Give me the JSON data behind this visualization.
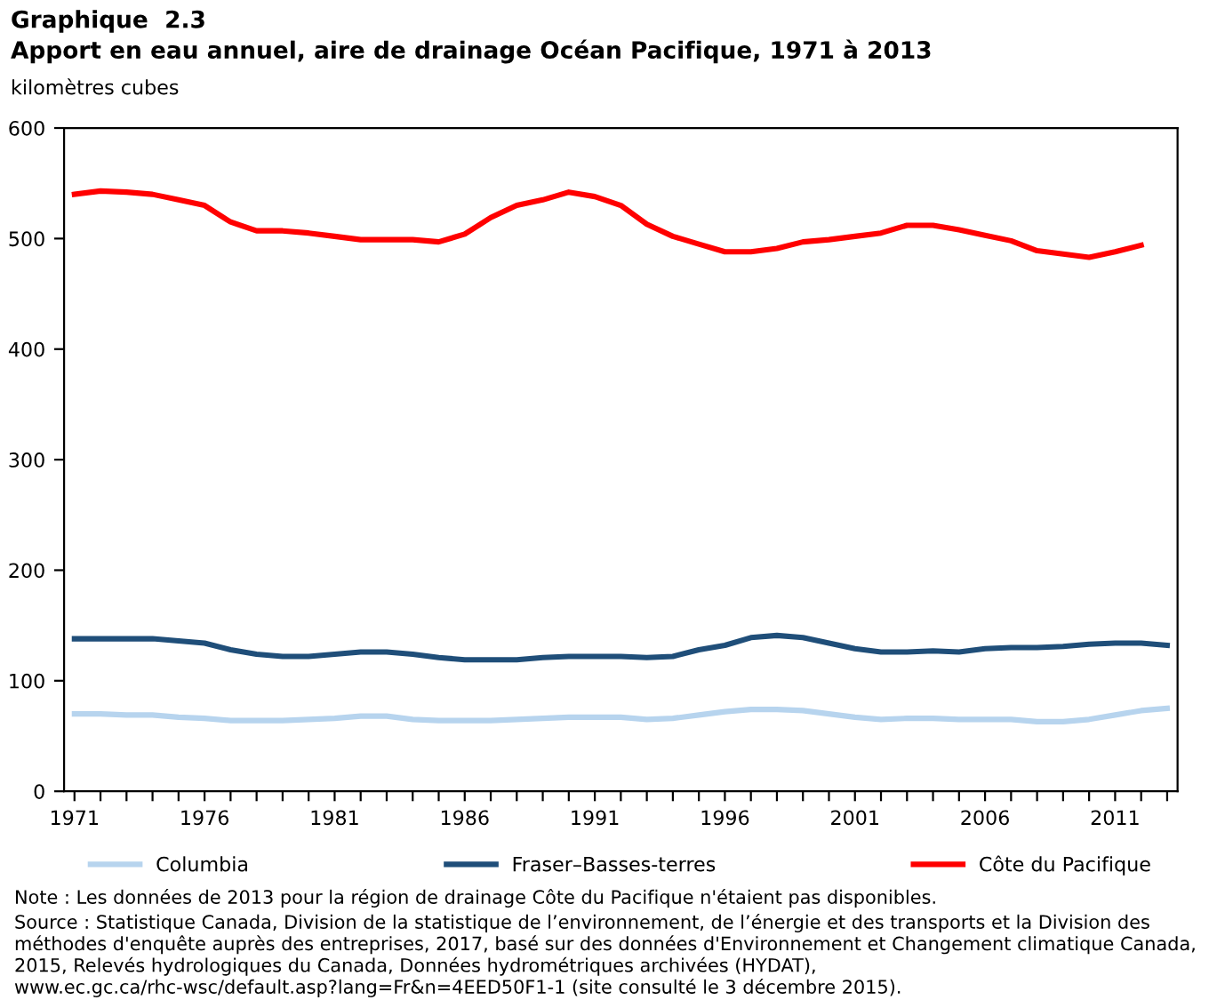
{
  "chart_data": {
    "type": "line",
    "title": "Graphique  2.3",
    "subtitle": "Apport en eau annuel, aire de drainage Océan Pacifique, 1971 à 2013",
    "ylabel": "kilomètres cubes",
    "x": [
      1971,
      1972,
      1973,
      1974,
      1975,
      1976,
      1977,
      1978,
      1979,
      1980,
      1981,
      1982,
      1983,
      1984,
      1985,
      1986,
      1987,
      1988,
      1989,
      1990,
      1991,
      1992,
      1993,
      1994,
      1995,
      1996,
      1997,
      1998,
      1999,
      2000,
      2001,
      2002,
      2003,
      2004,
      2005,
      2006,
      2007,
      2008,
      2009,
      2010,
      2011,
      2012,
      2013
    ],
    "series": [
      {
        "name": "Columbia",
        "color": "#b7d4ee",
        "values": [
          70,
          70,
          69,
          69,
          67,
          66,
          64,
          64,
          64,
          65,
          66,
          68,
          68,
          65,
          64,
          64,
          64,
          65,
          66,
          67,
          67,
          67,
          65,
          66,
          69,
          72,
          74,
          74,
          73,
          70,
          67,
          65,
          66,
          66,
          65,
          65,
          65,
          63,
          63,
          65,
          69,
          73,
          75
        ]
      },
      {
        "name": "Fraser–Basses-terres",
        "color": "#1f4e79",
        "values": [
          138,
          138,
          138,
          138,
          136,
          134,
          128,
          124,
          122,
          122,
          124,
          126,
          126,
          124,
          121,
          119,
          119,
          119,
          121,
          122,
          122,
          122,
          121,
          122,
          128,
          132,
          139,
          141,
          139,
          134,
          129,
          126,
          126,
          127,
          126,
          129,
          130,
          130,
          131,
          133,
          134,
          134,
          132
        ]
      },
      {
        "name": "Côte du Pacifique",
        "color": "#ff0000",
        "values": [
          540,
          543,
          542,
          540,
          535,
          530,
          515,
          507,
          507,
          505,
          502,
          499,
          499,
          499,
          497,
          504,
          519,
          530,
          535,
          542,
          538,
          530,
          513,
          502,
          495,
          488,
          488,
          491,
          497,
          499,
          502,
          505,
          512,
          512,
          508,
          503,
          498,
          489,
          486,
          483,
          488,
          494,
          null
        ]
      }
    ],
    "xlim": [
      1970.6,
      2013.4
    ],
    "xticks": [
      1971,
      {
        "value": 1972,
        "label": null
      },
      {
        "value": 1973,
        "label": null
      },
      {
        "value": 1974,
        "label": null
      },
      {
        "value": 1975,
        "label": null
      },
      1976,
      {
        "value": 1977,
        "label": null
      },
      {
        "value": 1978,
        "label": null
      },
      {
        "value": 1979,
        "label": null
      },
      {
        "value": 1980,
        "label": null
      },
      1981,
      {
        "value": 1982,
        "label": null
      },
      {
        "value": 1983,
        "label": null
      },
      {
        "value": 1984,
        "label": null
      },
      {
        "value": 1985,
        "label": null
      },
      1986,
      {
        "value": 1987,
        "label": null
      },
      {
        "value": 1988,
        "label": null
      },
      {
        "value": 1989,
        "label": null
      },
      {
        "value": 1990,
        "label": null
      },
      1991,
      {
        "value": 1992,
        "label": null
      },
      {
        "value": 1993,
        "label": null
      },
      {
        "value": 1994,
        "label": null
      },
      {
        "value": 1995,
        "label": null
      },
      1996,
      {
        "value": 1997,
        "label": null
      },
      {
        "value": 1998,
        "label": null
      },
      {
        "value": 1999,
        "label": null
      },
      {
        "value": 2000,
        "label": null
      },
      2001,
      {
        "value": 2002,
        "label": null
      },
      {
        "value": 2003,
        "label": null
      },
      {
        "value": 2004,
        "label": null
      },
      {
        "value": 2005,
        "label": null
      },
      2006,
      {
        "value": 2007,
        "label": null
      },
      {
        "value": 2008,
        "label": null
      },
      {
        "value": 2009,
        "label": null
      },
      {
        "value": 2010,
        "label": null
      },
      2011,
      {
        "value": 2012,
        "label": null
      },
      {
        "value": 2013,
        "label": null
      }
    ],
    "ylim": [
      0,
      600
    ],
    "yticks": [
      0,
      100,
      200,
      300,
      400,
      500,
      600
    ],
    "grid": false,
    "legend": "bottom",
    "marker": "none",
    "line_style": "solid",
    "annotations": [
      "Note : Les données de 2013 pour la région de drainage Côte du Pacifique n'étaient pas disponibles.",
      "Source : Statistique Canada, Division de la statistique de l’environnement, de l’énergie et des transports et la Division des méthodes d'enquête auprès des entreprises, 2017, basé sur des données d'Environnement et Changement climatique Canada, 2015, Relevés hydrologiques du Canada, Données hydrométriques archivées (HYDAT), www.ec.gc.ca/rhc-wsc/default.asp?lang=Fr&n=4EED50F1-1 (site consulté le 3 décembre 2015)."
    ]
  }
}
